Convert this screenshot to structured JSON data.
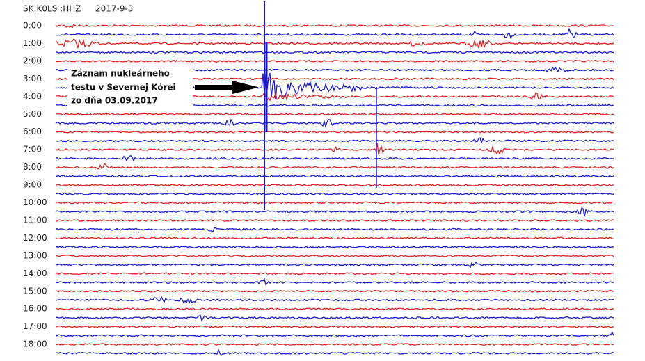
{
  "header": {
    "station": "SK:K0LS :HHZ",
    "date": "2017-9-3"
  },
  "time_labels": [
    "0:00",
    "1:00",
    "2:00",
    "3:00",
    "4:00",
    "5:00",
    "6:00",
    "7:00",
    "8:00",
    "9:00",
    "10:00",
    "11:00",
    "12:00",
    "13:00",
    "14:00",
    "15:00",
    "16:00",
    "17:00",
    "18:00"
  ],
  "annotation": {
    "lines": [
      "Záznam nukleárneho",
      "testu v Severnej Kórei",
      "zo dňa 03.09.2017"
    ]
  }
}
